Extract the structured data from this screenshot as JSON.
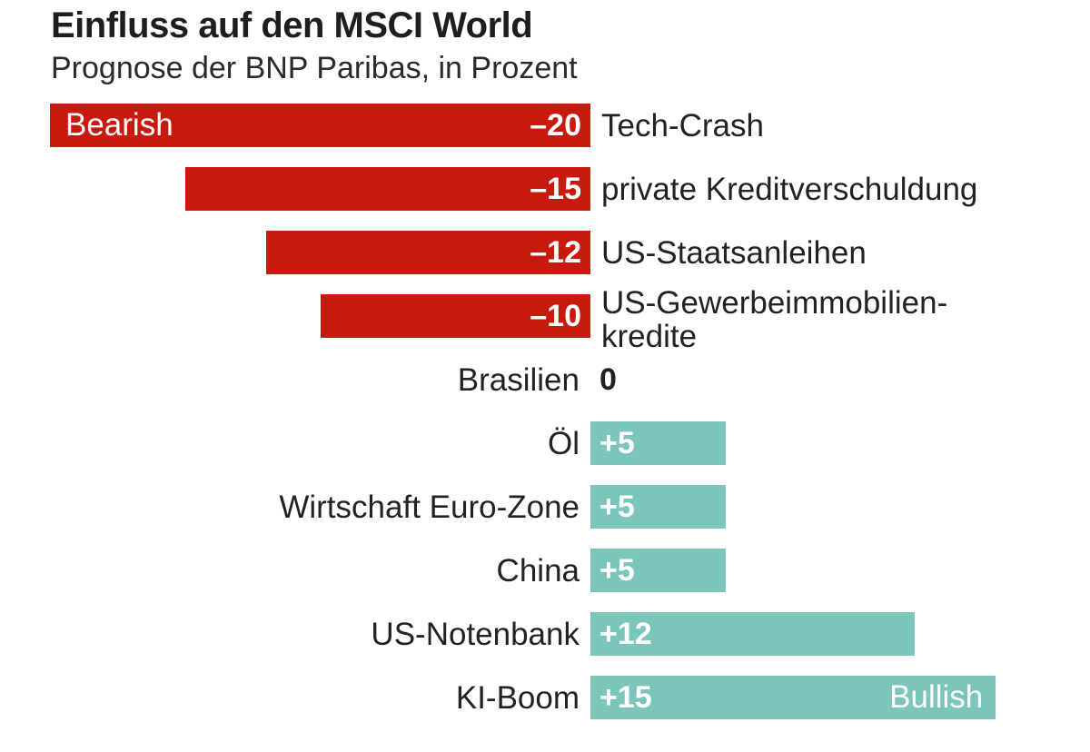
{
  "chart_data": {
    "type": "bar",
    "orientation": "horizontal",
    "title": "Einfluss auf den MSCI World",
    "subtitle": "Prognose der BNP Paribas, in Prozent",
    "categories": [
      "Tech-Crash",
      "private Kreditverschuldung",
      "US-Staatsanleihen",
      "US-Gewerbeimmobilien-\nkredite",
      "Brasilien",
      "Öl",
      "Wirtschaft Euro-Zone",
      "China",
      "US-Notenbank",
      "KI-Boom"
    ],
    "values": [
      -20,
      -15,
      -12,
      -10,
      0,
      5,
      5,
      5,
      12,
      15
    ],
    "value_labels": [
      "–20",
      "–15",
      "–12",
      "–10",
      "0",
      "+5",
      "+5",
      "+5",
      "+12",
      "+15"
    ],
    "xlim": [
      -20,
      15
    ],
    "grid": false,
    "annotations": {
      "negative": "Bearish",
      "positive": "Bullish"
    },
    "colors": {
      "negative": "#c8190f",
      "positive": "#7cc5bb"
    }
  }
}
